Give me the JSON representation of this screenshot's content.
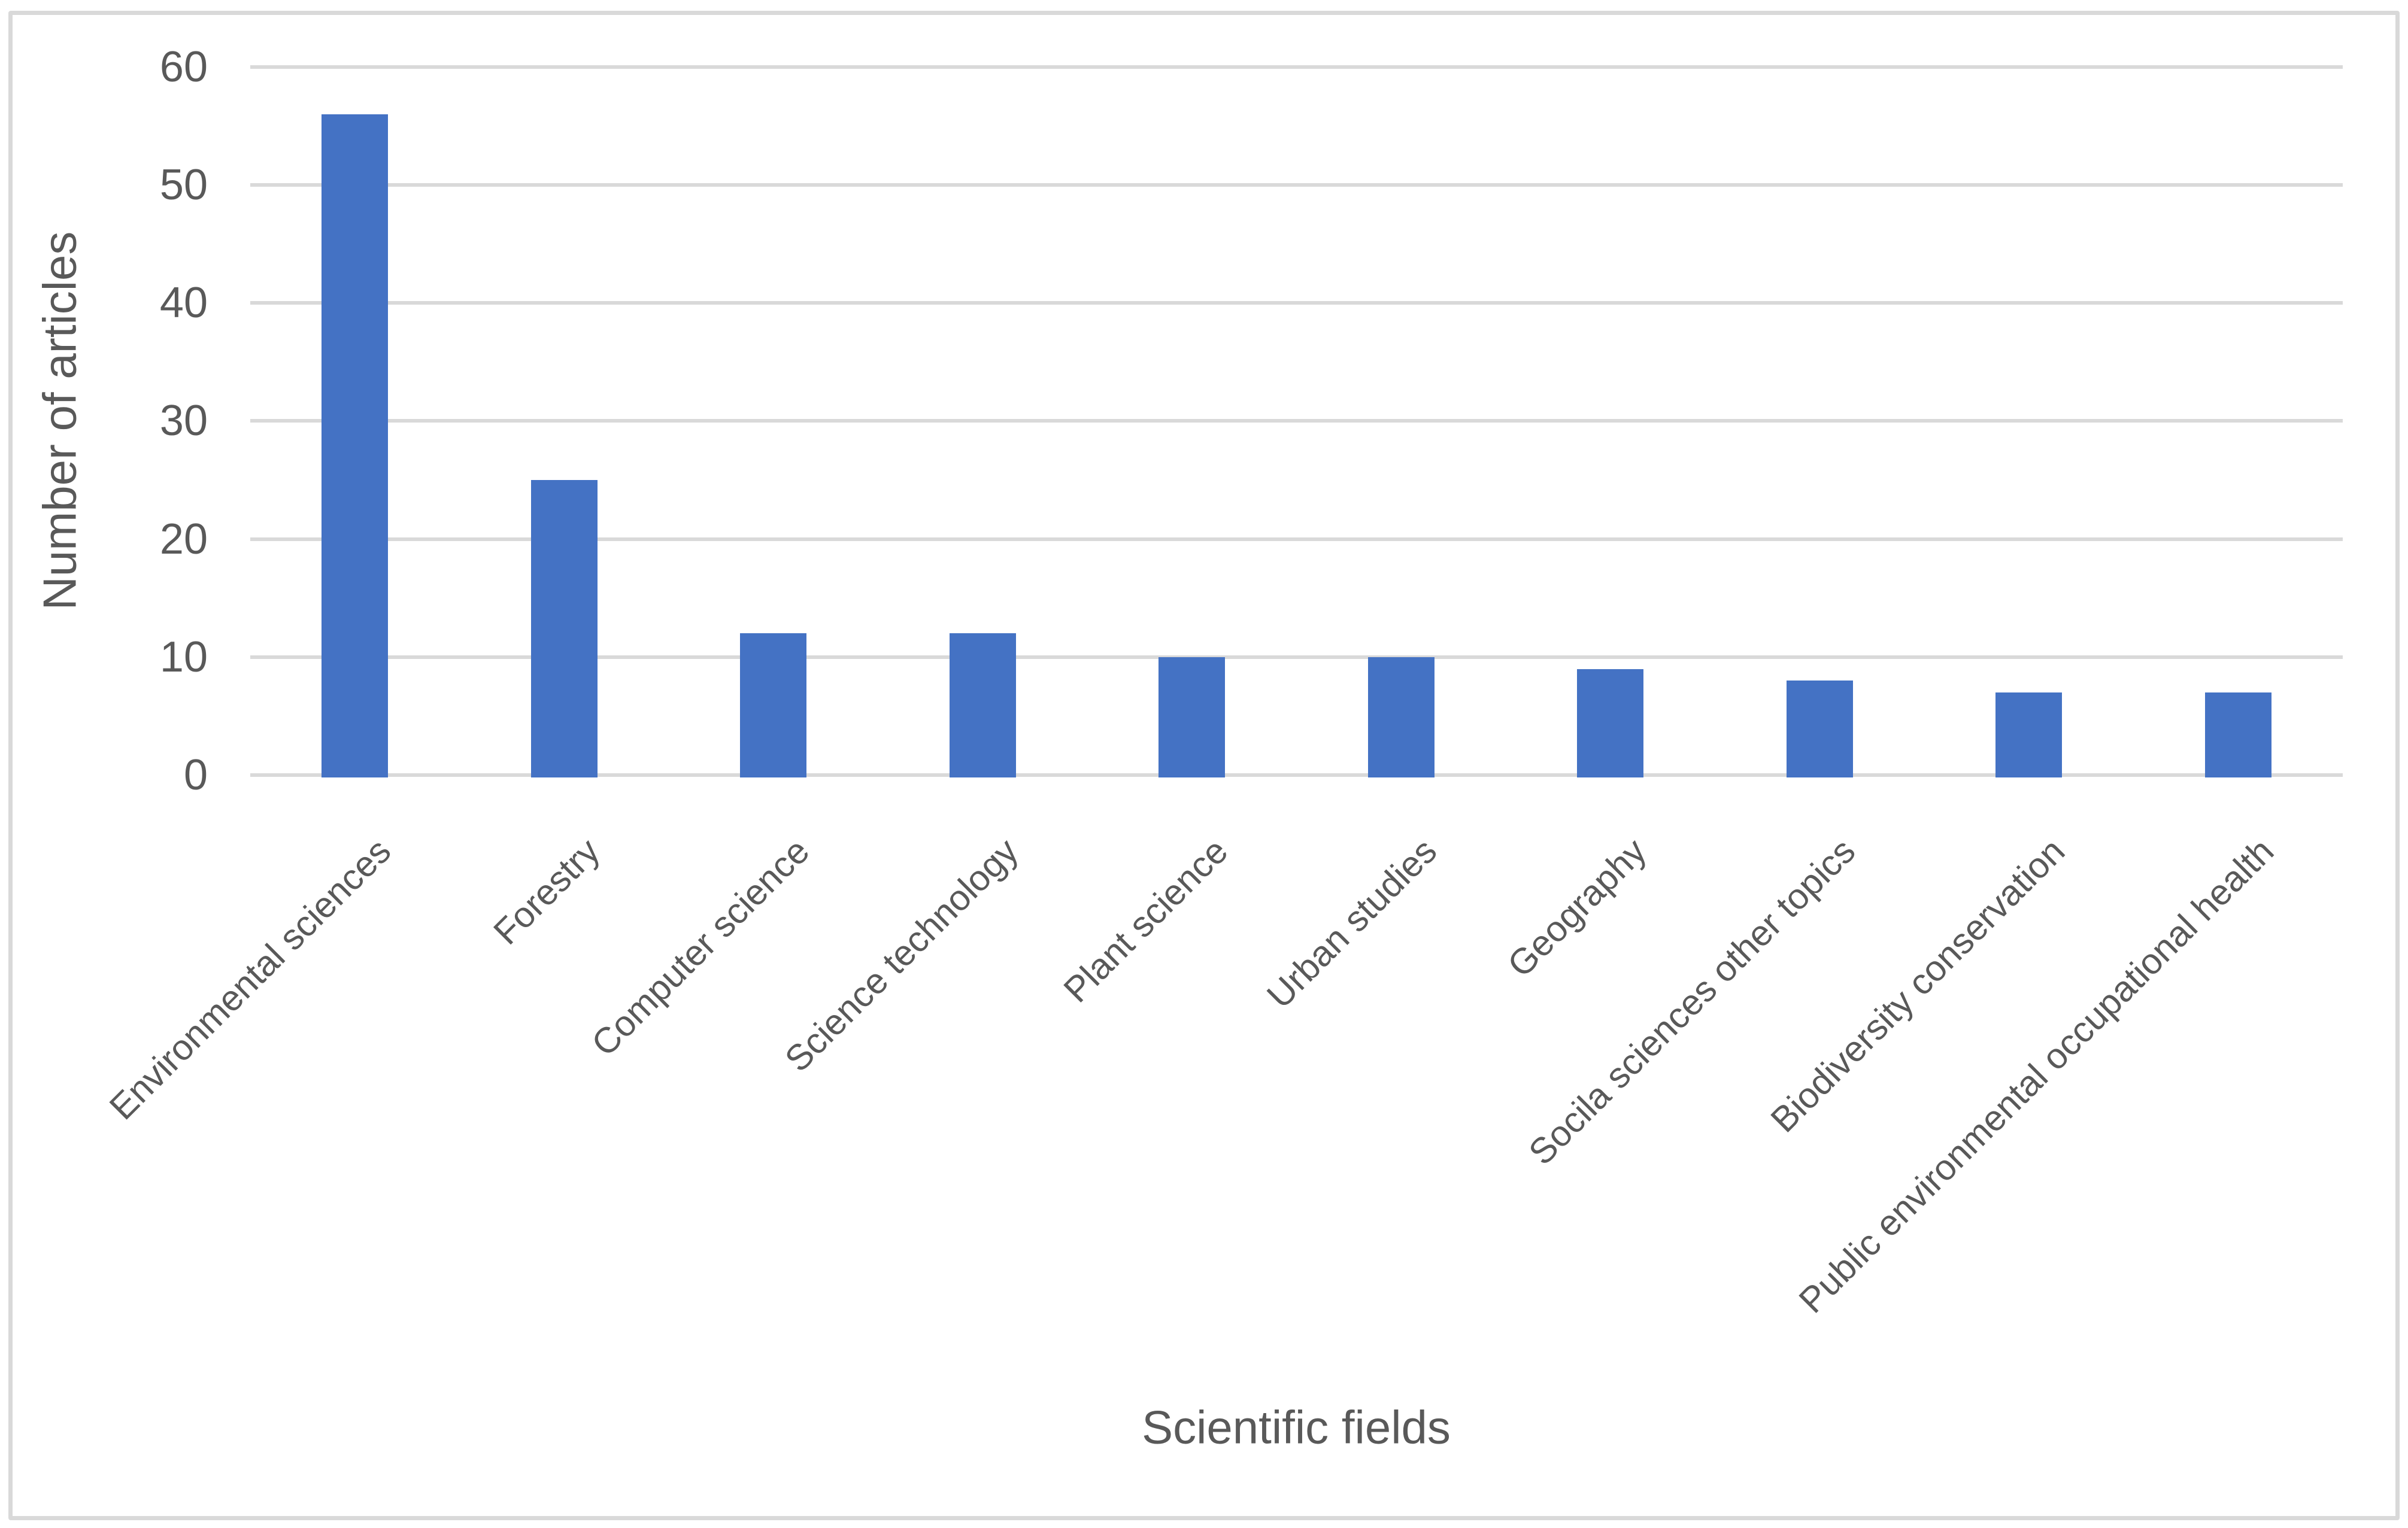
{
  "chart_data": {
    "type": "bar",
    "title": "",
    "categories": [
      "Environmental sciences",
      "Forestry",
      "Computer science",
      "Science technology",
      "Plant science",
      "Urban studies",
      "Geography",
      "Socila sciences other topics",
      "Biodiversity conservation",
      "Public environmental occupational health"
    ],
    "values": [
      56,
      25,
      12,
      12,
      10,
      10,
      9,
      8,
      7,
      7
    ],
    "xlabel": "Scientific fields",
    "ylabel": "Number of articles",
    "ylim": [
      0,
      60
    ],
    "yticks": [
      0,
      10,
      20,
      30,
      40,
      50,
      60
    ],
    "grid": "horizontal",
    "legend": "none",
    "x_label_rotation_deg": 45,
    "bar_color": "#4472C4",
    "gridline_color": "#D9D9D9",
    "label_color": "#595959",
    "border_color": "#D9D9D9",
    "background_color": "#FFFFFF"
  }
}
